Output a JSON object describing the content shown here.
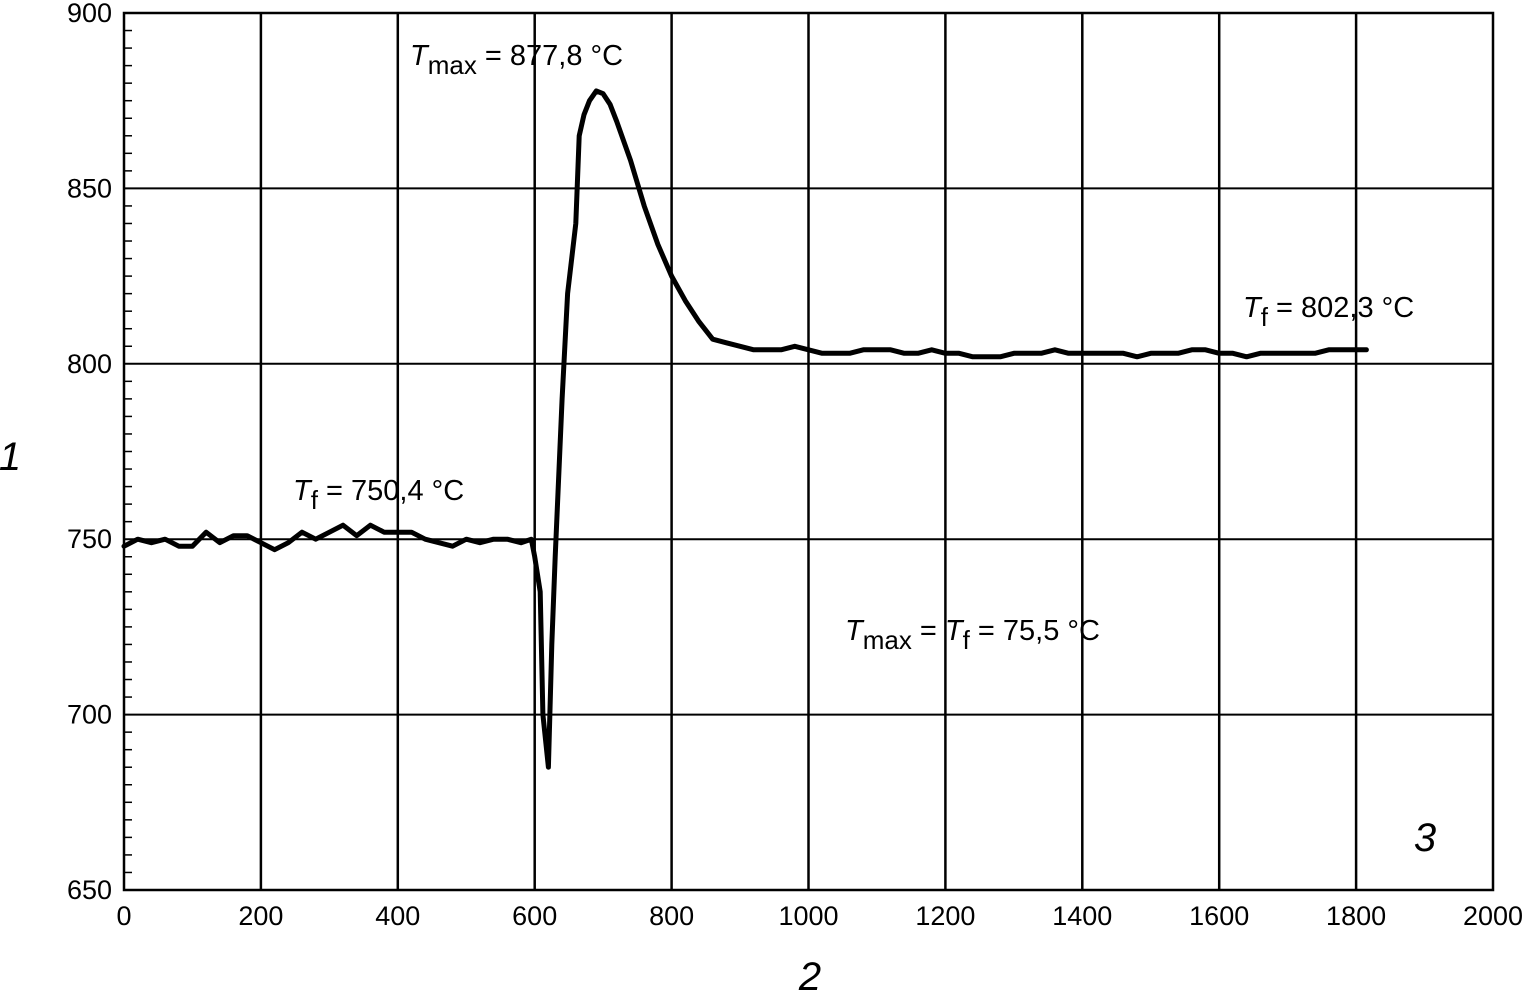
{
  "chart_data": {
    "type": "line",
    "title": "",
    "xlabel": "2",
    "ylabel": "1",
    "panel_label": "3",
    "xlim": [
      0,
      2000
    ],
    "ylim": [
      650,
      900
    ],
    "x_ticks": [
      "0",
      "200",
      "400",
      "600",
      "800",
      "1000",
      "1200",
      "1400",
      "1600",
      "1800",
      "2000"
    ],
    "y_ticks": [
      "650",
      "700",
      "750",
      "800",
      "850",
      "900"
    ],
    "grid": true,
    "series": [
      {
        "color": "#000000",
        "x": [
          0,
          20,
          40,
          60,
          80,
          100,
          120,
          140,
          160,
          180,
          200,
          220,
          240,
          260,
          280,
          300,
          320,
          340,
          360,
          380,
          400,
          420,
          440,
          460,
          480,
          500,
          520,
          540,
          560,
          580,
          595,
          600,
          608,
          612,
          620,
          625,
          630,
          640,
          648,
          660,
          665,
          672,
          680,
          690,
          700,
          710,
          720,
          740,
          760,
          780,
          800,
          820,
          840,
          860,
          880,
          900,
          920,
          940,
          960,
          980,
          1000,
          1020,
          1040,
          1060,
          1080,
          1100,
          1120,
          1140,
          1160,
          1180,
          1200,
          1220,
          1240,
          1260,
          1280,
          1300,
          1320,
          1340,
          1360,
          1380,
          1400,
          1420,
          1440,
          1460,
          1480,
          1500,
          1520,
          1540,
          1560,
          1580,
          1600,
          1620,
          1640,
          1660,
          1680,
          1700,
          1720,
          1740,
          1760,
          1780,
          1800,
          1815
        ],
        "y": [
          748,
          750,
          749,
          750,
          748,
          748,
          752,
          749,
          751,
          751,
          749,
          747,
          749,
          752,
          750,
          752,
          754,
          751,
          754,
          752,
          752,
          752,
          750,
          749,
          748,
          750,
          749,
          750,
          750,
          749,
          750,
          745,
          735,
          700,
          685,
          720,
          745,
          790,
          820,
          840,
          865,
          871,
          875,
          877.8,
          877,
          874,
          869,
          858,
          845,
          834,
          825,
          818,
          812,
          807,
          806,
          805,
          804,
          804,
          804,
          805,
          804,
          803,
          803,
          803,
          804,
          804,
          804,
          803,
          803,
          804,
          803,
          803,
          802,
          802,
          802,
          803,
          803,
          803,
          804,
          803,
          803,
          803,
          803,
          803,
          802,
          803,
          803,
          803,
          804,
          804,
          803,
          803,
          802,
          803,
          803,
          803,
          803,
          803,
          804,
          804,
          804,
          804
        ]
      }
    ],
    "annotations": [
      {
        "var": "T",
        "sub": "max",
        "text": " = 877,8 °C"
      },
      {
        "var": "T",
        "sub": "f",
        "text": " = 750,4 °C"
      },
      {
        "var": "T",
        "sub": "f",
        "text": " = 802,3 °C"
      },
      {
        "var": "T",
        "sub": "max",
        "mid": " = ",
        "var2": "T",
        "sub2": "f",
        "text": " = 75,5 °C"
      }
    ]
  }
}
